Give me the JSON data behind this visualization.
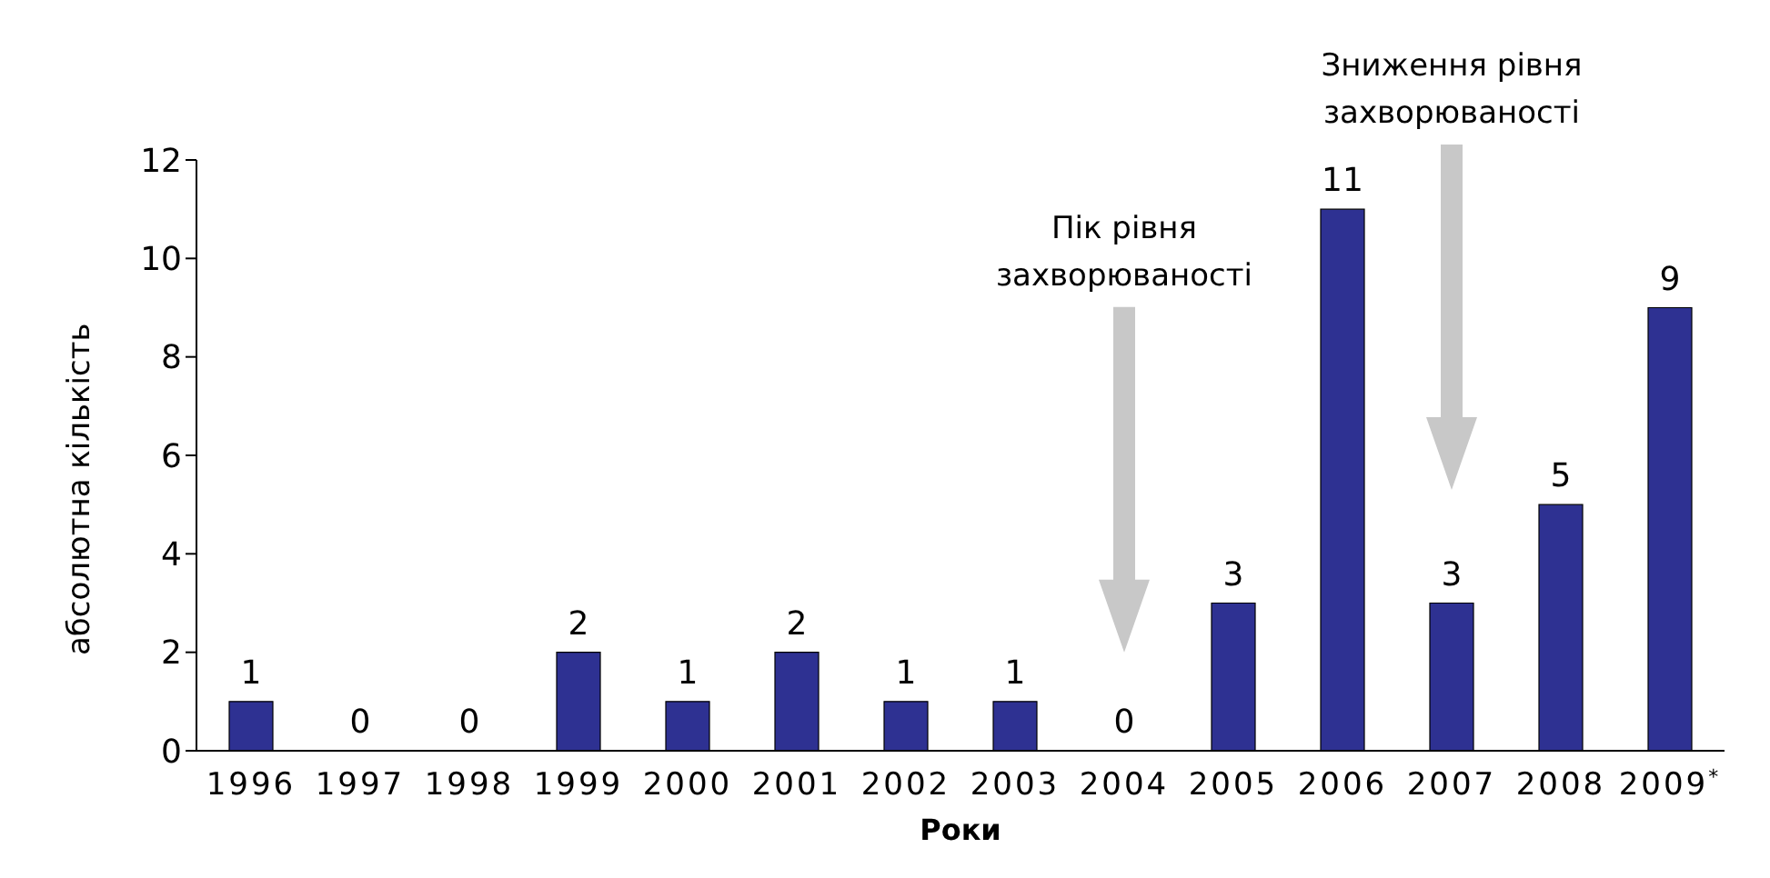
{
  "chart_data": {
    "type": "bar",
    "xlabel": "Роки",
    "ylabel": "абсолютна кількість",
    "categories": [
      "1996",
      "1997",
      "1998",
      "1999",
      "2000",
      "2001",
      "2002",
      "2003",
      "2004",
      "2005",
      "2006",
      "2007",
      "2008",
      "2009$^{*}$"
    ],
    "values": [
      1,
      0,
      0,
      2,
      1,
      2,
      1,
      1,
      0,
      3,
      11,
      3,
      5,
      9
    ],
    "color": "#2e3192",
    "ylim": [
      0,
      12
    ],
    "yticks": [
      0,
      2,
      4,
      6,
      8,
      10,
      12
    ],
    "grid": false,
    "data_labels": true,
    "annotations": [
      "Пік рівня\nзахворюваності",
      "Зниження рівня\nзахворюваності"
    ]
  }
}
